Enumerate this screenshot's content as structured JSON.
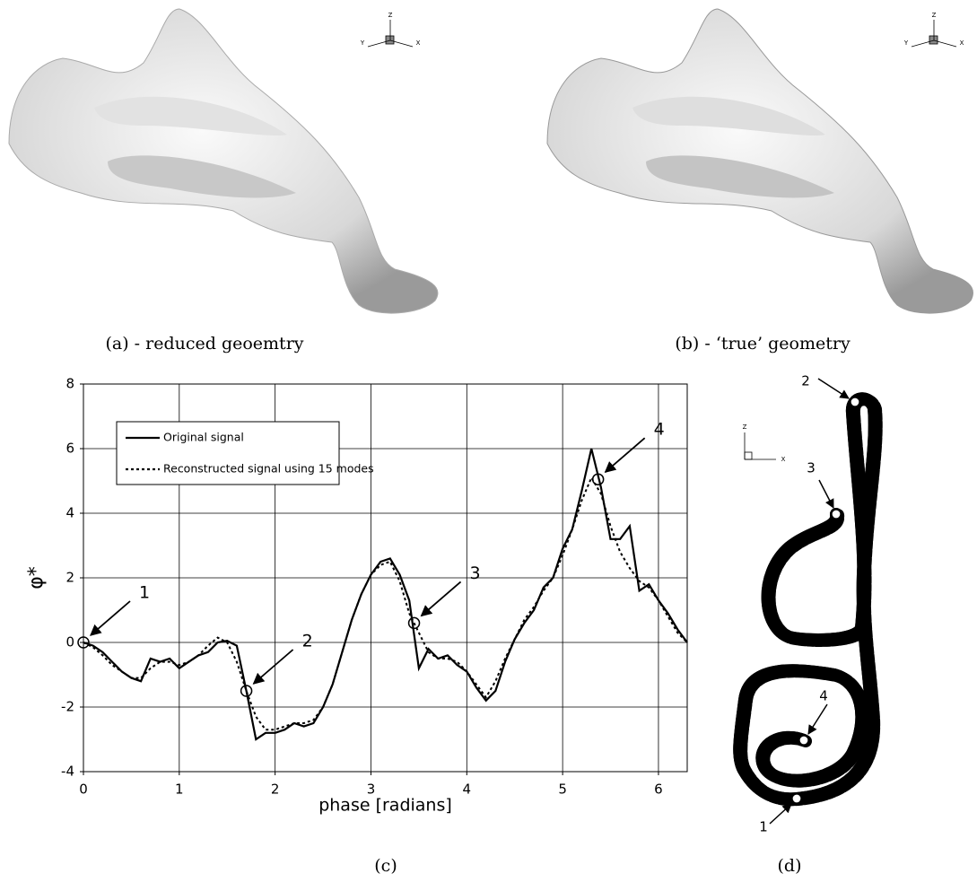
{
  "figure": {
    "captions": [
      "(a) - reduced geoemtry",
      "(b) - ‘true’ geometry",
      "(c)",
      "(d)"
    ],
    "triad": {
      "z": "Z",
      "y": "Y",
      "x": "X"
    },
    "panel_d_labels": [
      "1",
      "2",
      "3",
      "4"
    ]
  },
  "chart_data": {
    "type": "line",
    "x_label": "phase [radians]",
    "y_label": "φ*",
    "x": [
      0,
      0.1,
      0.2,
      0.3,
      0.4,
      0.5,
      0.6,
      0.7,
      0.8,
      0.9,
      1.0,
      1.1,
      1.2,
      1.3,
      1.4,
      1.5,
      1.6,
      1.7,
      1.8,
      1.9,
      2.0,
      2.1,
      2.2,
      2.3,
      2.4,
      2.5,
      2.6,
      2.7,
      2.8,
      2.9,
      3.0,
      3.1,
      3.2,
      3.3,
      3.4,
      3.5,
      3.6,
      3.7,
      3.8,
      3.9,
      4.0,
      4.1,
      4.2,
      4.3,
      4.4,
      4.5,
      4.6,
      4.7,
      4.8,
      4.9,
      5.0,
      5.1,
      5.2,
      5.3,
      5.4,
      5.5,
      5.6,
      5.7,
      5.8,
      5.9,
      6.0,
      6.1,
      6.2,
      6.3
    ],
    "series": [
      {
        "name": "Original signal",
        "color": "#000000",
        "dash": "solid",
        "values": [
          0,
          -0.1,
          -0.3,
          -0.6,
          -0.9,
          -1.1,
          -1.2,
          -0.5,
          -0.6,
          -0.5,
          -0.8,
          -0.6,
          -0.4,
          -0.3,
          0,
          0.05,
          -0.1,
          -1.5,
          -3.0,
          -2.8,
          -2.8,
          -2.7,
          -2.5,
          -2.6,
          -2.5,
          -2.0,
          -1.3,
          -0.3,
          0.7,
          1.5,
          2.1,
          2.5,
          2.6,
          2.1,
          1.3,
          -0.8,
          -0.2,
          -0.5,
          -0.4,
          -0.7,
          -0.9,
          -1.4,
          -1.8,
          -1.5,
          -0.6,
          0.1,
          0.6,
          1.0,
          1.7,
          2.0,
          2.9,
          3.5,
          4.7,
          6.0,
          4.8,
          3.2,
          3.2,
          3.6,
          1.6,
          1.8,
          1.3,
          0.9,
          0.4,
          0
        ]
      },
      {
        "name": "Reconstructed signal using 15 modes",
        "color": "#000000",
        "dash": "dashed",
        "values": [
          0,
          -0.15,
          -0.4,
          -0.7,
          -0.9,
          -1.1,
          -1.1,
          -0.8,
          -0.6,
          -0.6,
          -0.7,
          -0.6,
          -0.4,
          -0.1,
          0.15,
          0,
          -0.6,
          -1.5,
          -2.3,
          -2.7,
          -2.7,
          -2.6,
          -2.5,
          -2.5,
          -2.4,
          -2.0,
          -1.3,
          -0.3,
          0.7,
          1.5,
          2.1,
          2.4,
          2.5,
          1.9,
          0.9,
          0.3,
          -0.3,
          -0.5,
          -0.5,
          -0.6,
          -0.9,
          -1.3,
          -1.7,
          -1.2,
          -0.5,
          0.1,
          0.7,
          1.1,
          1.6,
          2.0,
          2.7,
          3.5,
          4.4,
          5.1,
          4.6,
          3.6,
          2.8,
          2.3,
          1.9,
          1.7,
          1.3,
          0.8,
          0.3,
          0
        ]
      }
    ],
    "annotations": [
      {
        "label": "1",
        "x": 0,
        "y": 0
      },
      {
        "label": "2",
        "x": 1.7,
        "y": -1.5
      },
      {
        "label": "3",
        "x": 3.45,
        "y": 0.6
      },
      {
        "label": "4",
        "x": 5.37,
        "y": 5.05
      }
    ],
    "xlim": [
      0,
      6.3
    ],
    "xticks": [
      0,
      1,
      2,
      3,
      4,
      5,
      6
    ],
    "ylim": [
      -4,
      8
    ],
    "yticks": [
      -4,
      -2,
      0,
      2,
      4,
      6,
      8
    ],
    "grid": true,
    "legend": "upper left"
  }
}
